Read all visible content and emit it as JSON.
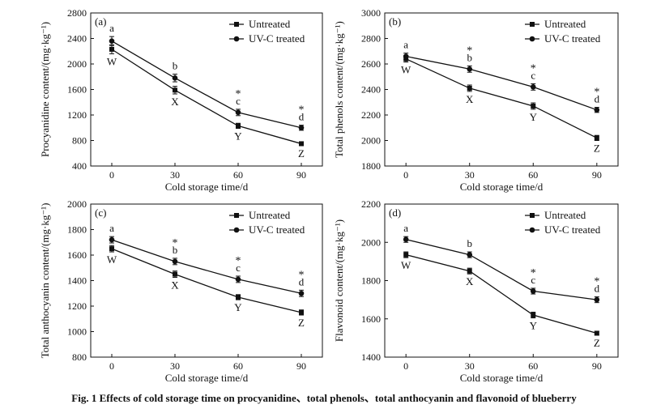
{
  "caption": "Fig. 1   Effects of cold storage time on procyanidine、total phenols、total anthocyanin and flavonoid of blueberry",
  "chart_data": [
    {
      "type": "line",
      "panel_label": "(a)",
      "xlabel": "Cold storage time/d",
      "ylabel": "Procyanidine content/(mg·kg⁻¹)",
      "x": [
        0,
        30,
        60,
        90
      ],
      "xlim": [
        -10,
        100
      ],
      "ylim": [
        400,
        2800
      ],
      "yticks": [
        400,
        800,
        1200,
        1600,
        2000,
        2400,
        2800
      ],
      "legend": "top-right",
      "series": [
        {
          "name": "Untreated",
          "marker": "square",
          "values": [
            2230,
            1590,
            1030,
            750
          ],
          "errors": [
            70,
            60,
            40,
            30
          ],
          "labels": [
            "W",
            "X",
            "Y",
            "Z"
          ],
          "label_pos": "below"
        },
        {
          "name": "UV-C treated",
          "marker": "circle",
          "values": [
            2360,
            1780,
            1240,
            1000
          ],
          "errors": [
            70,
            60,
            50,
            40
          ],
          "labels": [
            "a",
            "b",
            "c",
            "d"
          ],
          "label_pos": "above"
        }
      ],
      "stars": [
        false,
        false,
        true,
        true
      ]
    },
    {
      "type": "line",
      "panel_label": "(b)",
      "xlabel": "Cold storage time/d",
      "ylabel": "Total phenols content/(mg·kg⁻¹)",
      "x": [
        0,
        30,
        60,
        90
      ],
      "xlim": [
        -10,
        100
      ],
      "ylim": [
        1800,
        3000
      ],
      "yticks": [
        1800,
        2000,
        2200,
        2400,
        2600,
        2800,
        3000
      ],
      "legend": "top-right",
      "series": [
        {
          "name": "Untreated",
          "marker": "square",
          "values": [
            2640,
            2410,
            2270,
            2020
          ],
          "errors": [
            25,
            25,
            25,
            20
          ],
          "labels": [
            "W",
            "X",
            "Y",
            "Z"
          ],
          "label_pos": "below"
        },
        {
          "name": "UV-C treated",
          "marker": "circle",
          "values": [
            2660,
            2560,
            2420,
            2240
          ],
          "errors": [
            25,
            25,
            25,
            20
          ],
          "labels": [
            "a",
            "b",
            "c",
            "d"
          ],
          "label_pos": "above"
        }
      ],
      "stars": [
        false,
        true,
        true,
        true
      ]
    },
    {
      "type": "line",
      "panel_label": "(c)",
      "xlabel": "Cold storage time/d",
      "ylabel": "Total anthocyanin content/(mg·kg⁻¹)",
      "x": [
        0,
        30,
        60,
        90
      ],
      "xlim": [
        -10,
        100
      ],
      "ylim": [
        800,
        2000
      ],
      "yticks": [
        800,
        1000,
        1200,
        1400,
        1600,
        1800,
        2000
      ],
      "legend": "top-right",
      "series": [
        {
          "name": "Untreated",
          "marker": "square",
          "values": [
            1650,
            1450,
            1270,
            1150
          ],
          "errors": [
            25,
            25,
            20,
            20
          ],
          "labels": [
            "W",
            "X",
            "Y",
            "Z"
          ],
          "label_pos": "below"
        },
        {
          "name": "UV-C treated",
          "marker": "circle",
          "values": [
            1720,
            1550,
            1410,
            1300
          ],
          "errors": [
            25,
            25,
            25,
            25
          ],
          "labels": [
            "a",
            "b",
            "c",
            "d"
          ],
          "label_pos": "above"
        }
      ],
      "stars": [
        false,
        true,
        true,
        true
      ]
    },
    {
      "type": "line",
      "panel_label": "(d)",
      "xlabel": "Cold storage time/d",
      "ylabel": "Flavonoid content/(mg·kg⁻¹)",
      "x": [
        0,
        30,
        60,
        90
      ],
      "xlim": [
        -10,
        100
      ],
      "ylim": [
        1400,
        2200
      ],
      "yticks": [
        1400,
        1600,
        1800,
        2000,
        2200
      ],
      "legend": "top-right",
      "series": [
        {
          "name": "Untreated",
          "marker": "square",
          "values": [
            1935,
            1850,
            1620,
            1525
          ],
          "errors": [
            15,
            15,
            15,
            10
          ],
          "labels": [
            "W",
            "X",
            "Y",
            "Z"
          ],
          "label_pos": "below"
        },
        {
          "name": "UV-C treated",
          "marker": "circle",
          "values": [
            2015,
            1935,
            1745,
            1700
          ],
          "errors": [
            15,
            15,
            15,
            15
          ],
          "labels": [
            "a",
            "b",
            "c",
            "d"
          ],
          "label_pos": "above"
        }
      ],
      "stars": [
        false,
        false,
        true,
        true
      ]
    }
  ]
}
